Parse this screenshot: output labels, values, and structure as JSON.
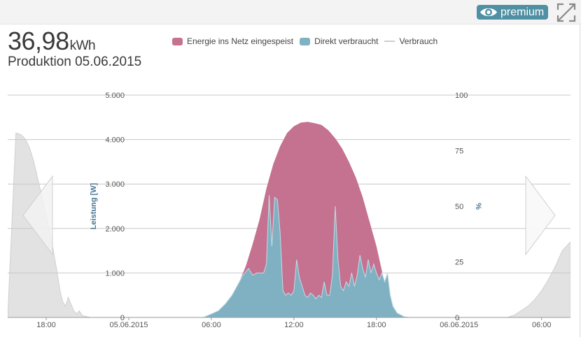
{
  "header": {
    "value": "36,98",
    "unit": "kWh",
    "subtitle": "Produktion 05.06.2015",
    "premium_label": "premium",
    "premium_icon": "eye-icon",
    "expand_icon": "expand-icon"
  },
  "legend": [
    {
      "label": "Energie ins Netz eingespeist",
      "color": "#c57190"
    },
    {
      "label": "Direkt verbraucht",
      "color": "#7fb1c3"
    },
    {
      "label": "Verbrauch",
      "color": "#d3d3d3"
    }
  ],
  "chart_data": {
    "type": "area",
    "ylabel_left": "Leistung [W]",
    "ylabel_right": "%",
    "left_ticks": [
      "0",
      "1.000",
      "2.000",
      "3.000",
      "4.000",
      "5.000"
    ],
    "right_ticks": [
      "0",
      "25",
      "50",
      "75",
      "100"
    ],
    "x_ticks": [
      "18:00",
      "05.06.2015",
      "06:00",
      "12:00",
      "18:00",
      "06.06.2015",
      "06:00"
    ],
    "ylim_left": [
      0,
      5000
    ],
    "ylim_right": [
      0,
      100
    ],
    "x_range_hours": [
      -8.8,
      32.1
    ],
    "series": [
      {
        "name": "Energie ins Netz eingespeist",
        "color": "#c57190",
        "x": [
          5.4,
          6.0,
          6.5,
          7.0,
          7.5,
          8.0,
          8.5,
          9.0,
          9.5,
          10.0,
          10.5,
          11.0,
          11.5,
          12.0,
          12.5,
          13.0,
          13.5,
          14.0,
          14.5,
          15.0,
          15.5,
          16.0,
          16.5,
          17.0,
          17.5,
          18.0,
          18.5,
          19.0,
          19.5,
          20.0,
          20.4,
          21.0
        ],
        "values": [
          0,
          80,
          150,
          300,
          500,
          780,
          1150,
          1650,
          2200,
          2900,
          3450,
          3850,
          4150,
          4300,
          4380,
          4400,
          4370,
          4330,
          4210,
          4030,
          3800,
          3500,
          3150,
          2700,
          2150,
          1600,
          900,
          350,
          100,
          20,
          0,
          0
        ]
      },
      {
        "name": "Direkt verbraucht",
        "color": "#7fb1c3",
        "x": [
          5.4,
          6.0,
          6.5,
          7.0,
          7.5,
          8.0,
          8.3,
          8.7,
          9.0,
          9.3,
          9.6,
          9.8,
          10.0,
          10.2,
          10.4,
          10.6,
          10.8,
          11.0,
          11.2,
          11.4,
          11.6,
          11.8,
          12.0,
          12.2,
          12.4,
          12.6,
          12.8,
          13.0,
          13.2,
          13.4,
          13.6,
          13.8,
          14.0,
          14.2,
          14.4,
          14.6,
          14.8,
          15.0,
          15.2,
          15.4,
          15.6,
          15.8,
          16.0,
          16.2,
          16.4,
          16.6,
          16.8,
          17.0,
          17.2,
          17.4,
          17.6,
          17.8,
          18.0,
          18.2,
          18.4,
          18.6,
          18.8,
          19.0,
          19.2,
          19.5,
          20.0,
          20.4,
          21.0
        ],
        "values": [
          0,
          80,
          150,
          300,
          500,
          780,
          950,
          1100,
          950,
          1000,
          1000,
          1000,
          1200,
          2750,
          1600,
          2700,
          2650,
          1900,
          600,
          500,
          550,
          500,
          600,
          1300,
          900,
          700,
          500,
          450,
          550,
          500,
          420,
          500,
          450,
          800,
          500,
          500,
          950,
          2500,
          1300,
          700,
          600,
          800,
          700,
          1000,
          700,
          950,
          1400,
          1100,
          900,
          1300,
          1000,
          1200,
          1000,
          850,
          1000,
          800,
          1000,
          500,
          250,
          100,
          20,
          0,
          0
        ]
      }
    ],
    "consumption_profile_pct": [
      {
        "x": [
          -8.8,
          -8.2,
          -7.8,
          -7.5,
          -7.2,
          -6.9,
          -6.6,
          -6.3,
          -6.0,
          -5.8,
          -5.6,
          -5.4,
          -5.2,
          -5.0,
          -4.8,
          -4.6,
          -4.4,
          -4.2,
          -4.0,
          -3.8,
          -3.6,
          -3.4,
          -3.2,
          -3.0,
          -2.8,
          -2.5
        ],
        "values": [
          0,
          83,
          82,
          80,
          76,
          70,
          62,
          54,
          46,
          40,
          34,
          27,
          20,
          12,
          7,
          5,
          9,
          6,
          3,
          1.5,
          3,
          1,
          0.5,
          0.3,
          0,
          0
        ]
      },
      {
        "x": [
          27.5,
          28.0,
          28.5,
          29.0,
          29.5,
          30.0,
          30.5,
          31.0,
          31.5,
          32.1
        ],
        "values": [
          0,
          1,
          3,
          5,
          8,
          12,
          17,
          23,
          30,
          34
        ]
      }
    ]
  }
}
